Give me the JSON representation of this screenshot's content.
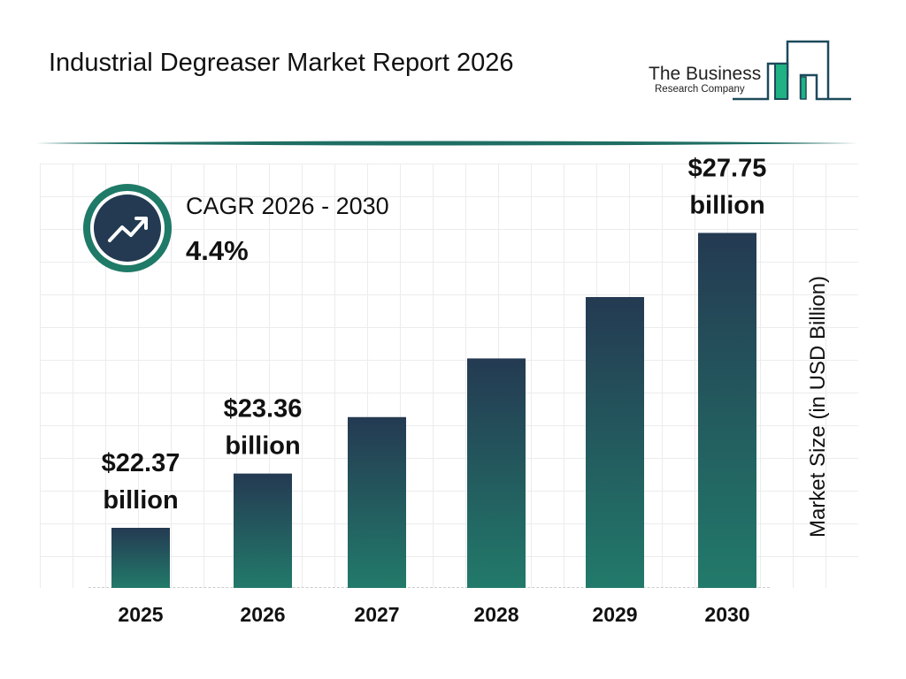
{
  "header": {
    "title": "Industrial Degreaser Market Report 2026"
  },
  "logo": {
    "line1": "The Business",
    "line2": "Research Company"
  },
  "cagr": {
    "label": "CAGR 2026 - 2030",
    "value": "4.4%",
    "icon": "trend-up-arrow-icon"
  },
  "colors": {
    "bar_top": "#243a52",
    "bar_bottom": "#227a6a",
    "accent": "#1f7a68"
  },
  "chart_data": {
    "type": "bar",
    "title": "",
    "xlabel": "",
    "ylabel": "Market Size (in USD Billion)",
    "categories": [
      "2025",
      "2026",
      "2027",
      "2028",
      "2029",
      "2030"
    ],
    "values": [
      22.37,
      23.36,
      24.39,
      25.46,
      26.58,
      27.75
    ],
    "data_labels": [
      {
        "index": 0,
        "line1": "$22.37",
        "line2": "billion"
      },
      {
        "index": 1,
        "line1": "$23.36",
        "line2": "billion"
      },
      {
        "index": 5,
        "line1": "$27.75",
        "line2": "billion"
      }
    ],
    "grid": true
  }
}
